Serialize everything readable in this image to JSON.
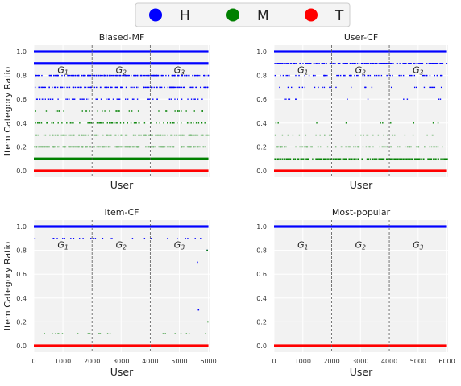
{
  "legend": {
    "placement": "top-center",
    "items": [
      {
        "label": "H",
        "color": "#0000ff"
      },
      {
        "label": "M",
        "color": "#008000"
      },
      {
        "label": "T",
        "color": "#ff0000"
      }
    ]
  },
  "shared": {
    "ylabel": "Item Category Ratio",
    "xlabel": "User",
    "x_ticks": [
      0,
      1000,
      2000,
      3000,
      4000,
      5000,
      6000
    ],
    "y_ticks": [
      "0.0",
      "0.2",
      "0.4",
      "0.6",
      "0.8",
      "1.0"
    ],
    "group_boundaries": [
      2000,
      4000
    ],
    "group_labels": [
      "G1",
      "G2",
      "G3"
    ],
    "plot_background": "#f2f2f2",
    "divider_color": "#555555"
  },
  "chart_data": [
    {
      "type": "scatter",
      "title": "Biased-MF",
      "xlim": [
        0,
        6040
      ],
      "ylim": [
        0,
        1
      ],
      "grid": true,
      "group_label_y": 0.82,
      "series": [
        {
          "name": "H",
          "color": "#0000ff",
          "levels": [
            {
              "y": 1.0,
              "density": 1.0
            },
            {
              "y": 0.9,
              "density": 1.0
            },
            {
              "y": 0.8,
              "density": 0.9
            },
            {
              "y": 0.7,
              "density": 0.6
            },
            {
              "y": 0.6,
              "density": 0.25
            }
          ]
        },
        {
          "name": "M",
          "color": "#008000",
          "levels": [
            {
              "y": 0.5,
              "density": 0.15
            },
            {
              "y": 0.4,
              "density": 0.3
            },
            {
              "y": 0.3,
              "density": 0.5
            },
            {
              "y": 0.2,
              "density": 0.8
            },
            {
              "y": 0.1,
              "density": 1.0
            }
          ]
        },
        {
          "name": "T",
          "color": "#ff0000",
          "levels": [
            {
              "y": 0.0,
              "density": 1.0
            }
          ]
        }
      ]
    },
    {
      "type": "scatter",
      "title": "User-CF",
      "xlim": [
        0,
        6040
      ],
      "ylim": [
        0,
        1
      ],
      "grid": true,
      "group_label_y": 0.82,
      "series": [
        {
          "name": "H",
          "color": "#0000ff",
          "levels": [
            {
              "y": 1.0,
              "density": 1.0
            },
            {
              "y": 0.9,
              "density": 0.85
            },
            {
              "y": 0.8,
              "density": 0.3
            },
            {
              "y": 0.7,
              "density": 0.12
            },
            {
              "y": 0.6,
              "density": 0.05
            }
          ]
        },
        {
          "name": "M",
          "color": "#008000",
          "levels": [
            {
              "y": 0.4,
              "density": 0.04
            },
            {
              "y": 0.3,
              "density": 0.12
            },
            {
              "y": 0.2,
              "density": 0.35
            },
            {
              "y": 0.1,
              "density": 0.9
            }
          ]
        },
        {
          "name": "T",
          "color": "#ff0000",
          "levels": [
            {
              "y": 0.0,
              "density": 1.0
            }
          ]
        }
      ]
    },
    {
      "type": "scatter",
      "title": "Item-CF",
      "xlim": [
        0,
        6040
      ],
      "ylim": [
        0,
        1
      ],
      "grid": true,
      "group_label_y": 0.82,
      "series": [
        {
          "name": "H",
          "color": "#0000ff",
          "levels": [
            {
              "y": 1.0,
              "density": 1.0
            },
            {
              "y": 0.9,
              "density": 0.12
            }
          ],
          "points": [
            [
              5620,
              0.7
            ],
            [
              5960,
              0.8
            ],
            [
              5660,
              0.3
            ]
          ]
        },
        {
          "name": "M",
          "color": "#008000",
          "levels": [
            {
              "y": 0.1,
              "density": 0.1
            }
          ],
          "points": [
            [
              5980,
              0.2
            ],
            [
              5960,
              0.8
            ]
          ]
        },
        {
          "name": "T",
          "color": "#ff0000",
          "levels": [
            {
              "y": 0.0,
              "density": 1.0
            }
          ]
        }
      ]
    },
    {
      "type": "scatter",
      "title": "Most-popular",
      "xlim": [
        0,
        6040
      ],
      "ylim": [
        0,
        1
      ],
      "grid": true,
      "group_label_y": 0.82,
      "series": [
        {
          "name": "H",
          "color": "#0000ff",
          "levels": [
            {
              "y": 1.0,
              "density": 1.0
            }
          ]
        },
        {
          "name": "M",
          "color": "#008000",
          "levels": []
        },
        {
          "name": "T",
          "color": "#ff0000",
          "levels": [
            {
              "y": 0.0,
              "density": 1.0
            }
          ]
        }
      ]
    }
  ]
}
